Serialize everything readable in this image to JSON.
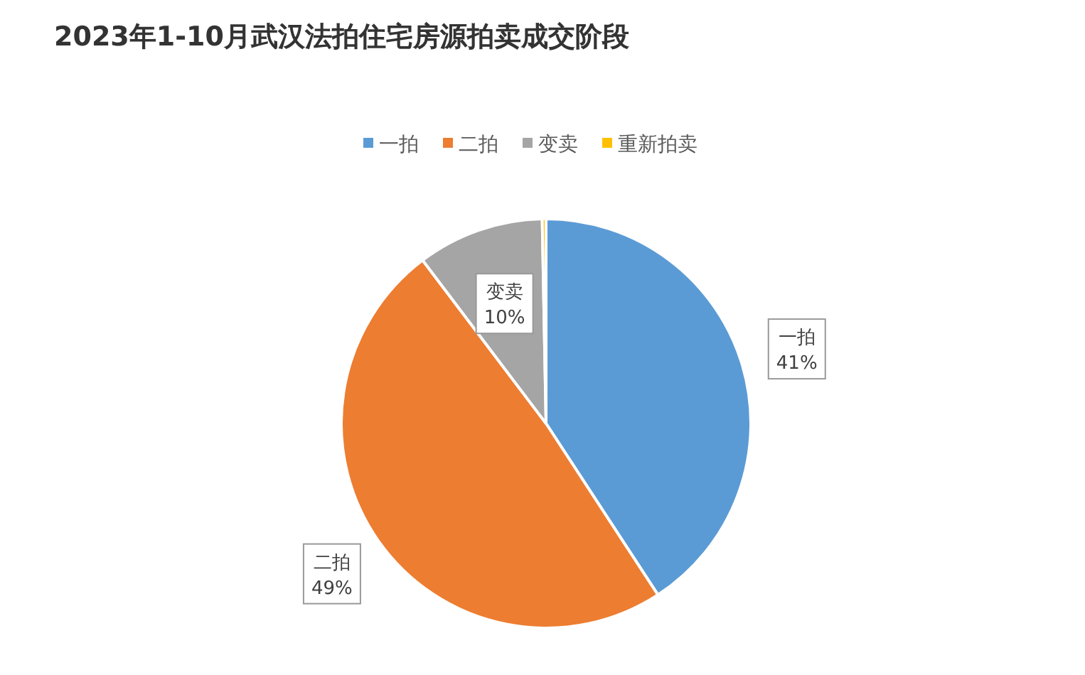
{
  "chart_data": {
    "type": "pie",
    "title": "2023年1-10月武汉法拍住宅房源拍卖成交阶段",
    "categories": [
      "一拍",
      "二拍",
      "变卖",
      "重新拍卖"
    ],
    "values": [
      40.8,
      48.9,
      10,
      0.3
    ],
    "colors": [
      "#5b9bd5",
      "#ed7d31",
      "#a5a5a5",
      "#ffc000"
    ],
    "value_labels": [
      "41%",
      "49%",
      "10%",
      null
    ],
    "legend": "top"
  }
}
